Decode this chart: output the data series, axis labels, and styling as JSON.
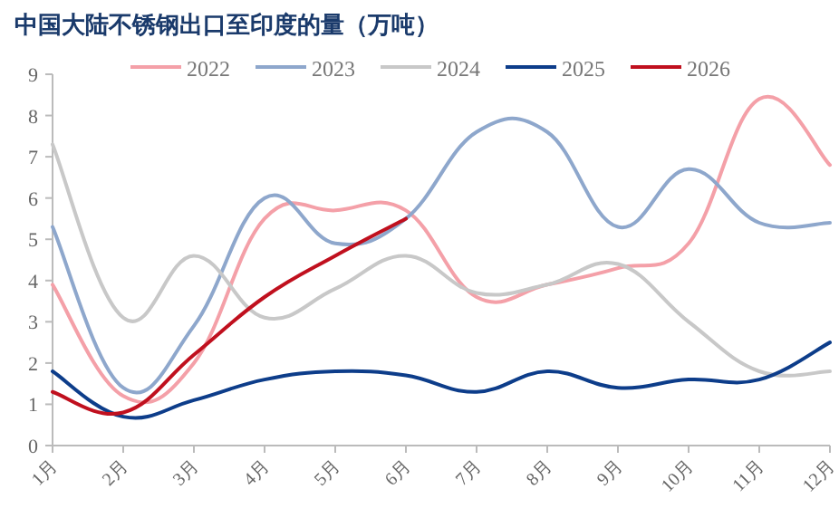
{
  "chart_data": {
    "type": "line",
    "title": "中国大陆不锈钢出口至印度的量（万吨）",
    "categories": [
      "1月",
      "2月",
      "3月",
      "4月",
      "5月",
      "6月",
      "7月",
      "8月",
      "9月",
      "10月",
      "11月",
      "12月"
    ],
    "series": [
      {
        "name": "2022",
        "color": "#f4a0a8",
        "values": [
          3.9,
          1.2,
          2.0,
          5.5,
          5.7,
          5.7,
          3.6,
          3.9,
          4.3,
          4.9,
          8.4,
          6.8
        ]
      },
      {
        "name": "2023",
        "color": "#8ea7cc",
        "values": [
          5.3,
          1.4,
          2.9,
          6.0,
          4.9,
          5.5,
          7.6,
          7.6,
          5.3,
          6.7,
          5.4,
          5.4
        ]
      },
      {
        "name": "2024",
        "color": "#c8c8c8",
        "values": [
          7.3,
          3.1,
          4.6,
          3.1,
          3.8,
          4.6,
          3.7,
          3.9,
          4.4,
          3.0,
          1.8,
          1.8
        ]
      },
      {
        "name": "2025",
        "color": "#0d3d8a",
        "values": [
          1.8,
          0.7,
          1.1,
          1.6,
          1.8,
          1.7,
          1.3,
          1.8,
          1.4,
          1.6,
          1.6,
          2.5
        ]
      },
      {
        "name": "2026",
        "color": "#c0101e",
        "values": [
          1.3,
          0.8,
          2.2,
          3.6,
          4.6,
          5.5,
          null,
          null,
          null,
          null,
          null,
          null
        ]
      }
    ],
    "ylim": [
      0,
      9
    ],
    "yticks": [
      0,
      1,
      2,
      3,
      4,
      5,
      6,
      7,
      8,
      9
    ],
    "grid": false,
    "legend": "top",
    "marker": "none",
    "line_style": "solid"
  }
}
